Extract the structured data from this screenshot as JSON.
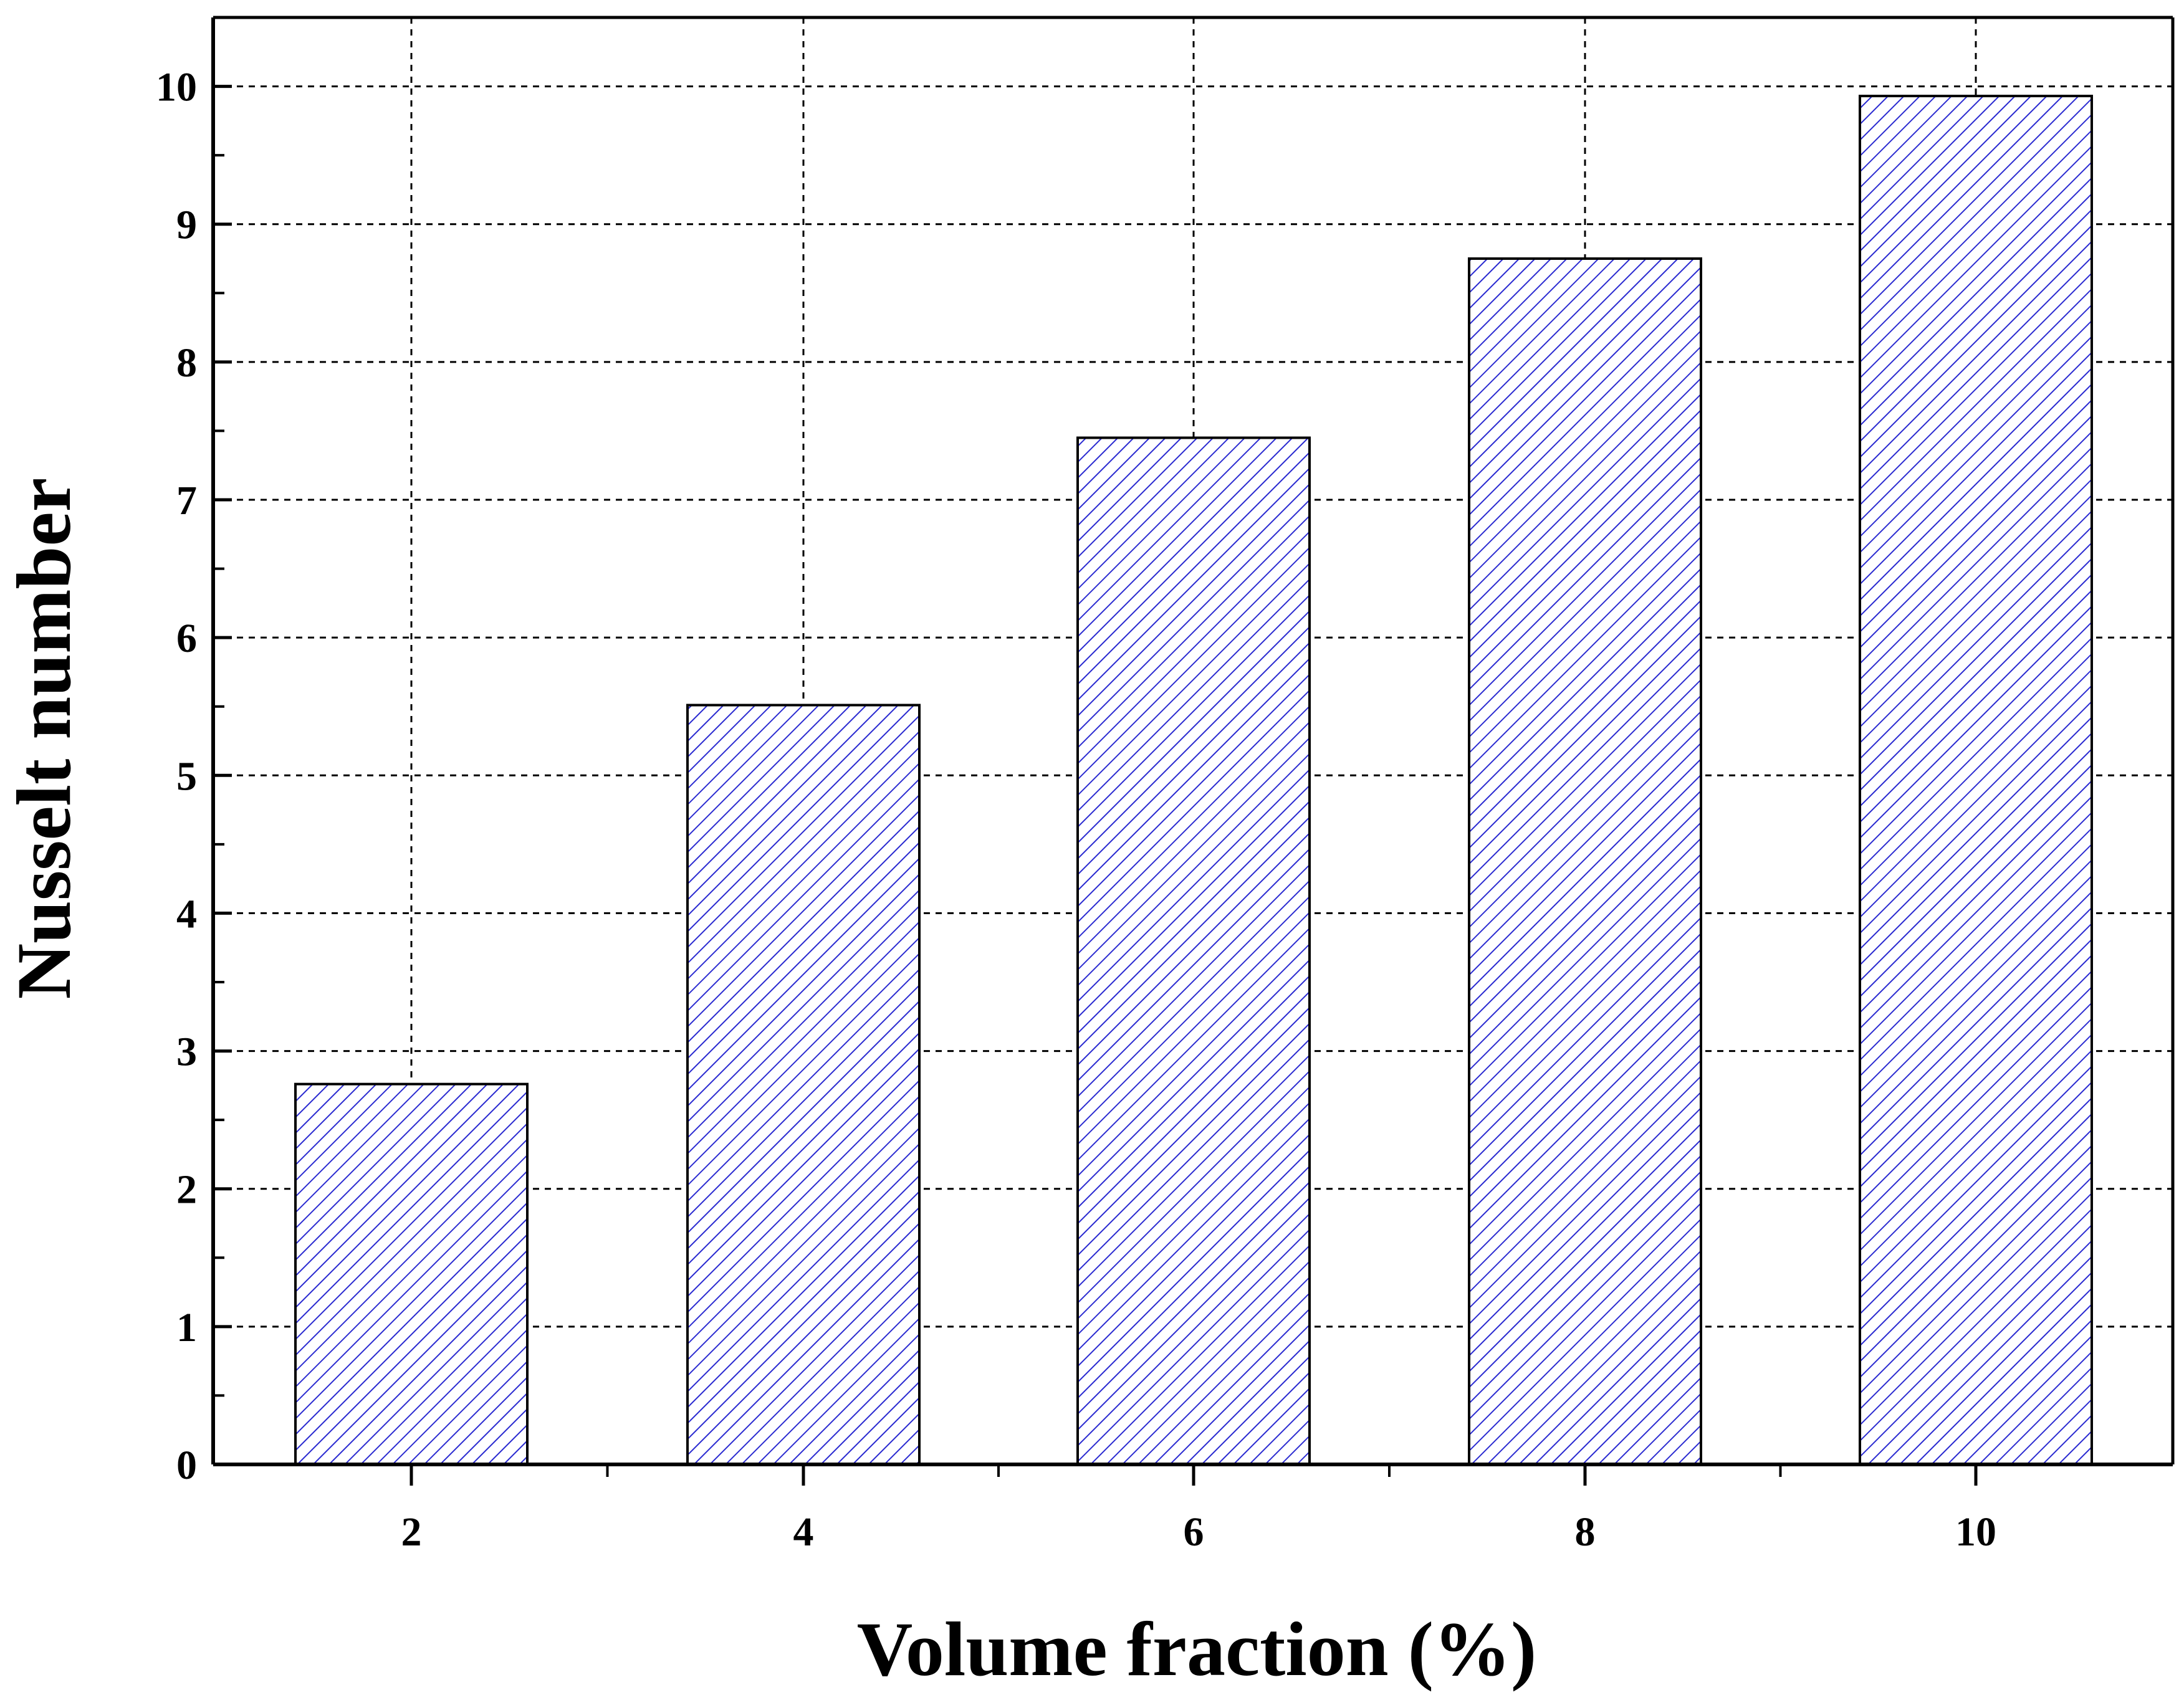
{
  "chart_data": {
    "type": "bar",
    "title": "",
    "xlabel": "Volume fraction (%)",
    "ylabel": "Nusselt number",
    "categories": [
      "2",
      "4",
      "6",
      "8",
      "10"
    ],
    "values": [
      2.76,
      5.51,
      7.45,
      8.75,
      9.93
    ],
    "ylim": [
      0,
      10.5
    ],
    "yticks": [
      "0",
      "1",
      "2",
      "3",
      "4",
      "5",
      "6",
      "7",
      "8",
      "9",
      "10"
    ],
    "grid": true,
    "bar_fill": "#ffffff",
    "hatch_color": "#2b2bd1",
    "edge_color": "#000000",
    "grid_color": "#000000"
  }
}
